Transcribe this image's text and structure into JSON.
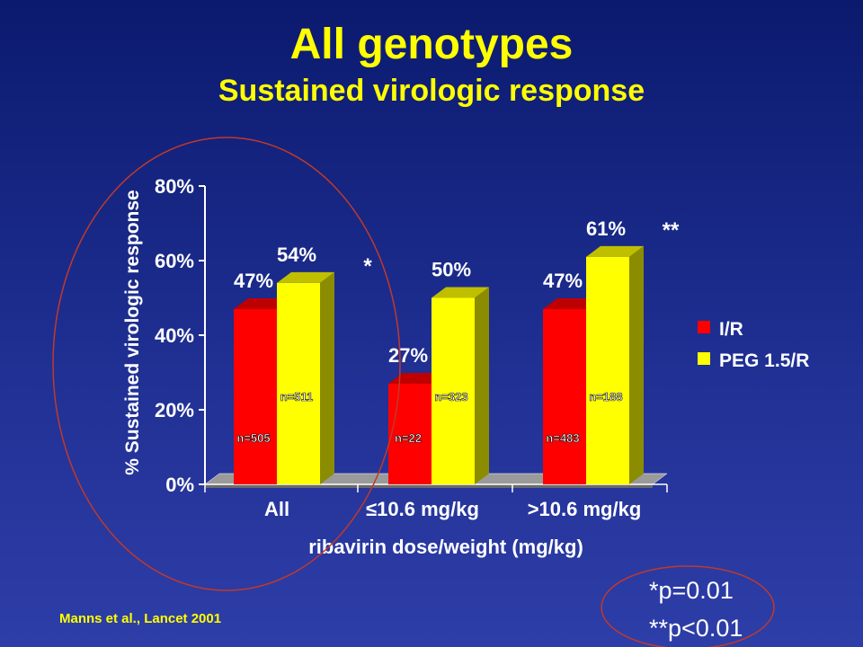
{
  "slide": {
    "title": "All genotypes",
    "subtitle": "Sustained virologic response",
    "source": "Manns et al., Lancet 2001",
    "footnotes": [
      "*p=0.01",
      "**p<0.01"
    ]
  },
  "colors": {
    "background": "#1f2f92",
    "title": "#ffff00",
    "series_ir": "#ff0000",
    "series_peg": "#ffff00",
    "annotation_circles": "#c0392b"
  },
  "chart_data": {
    "type": "bar",
    "categories": [
      "All",
      "≤10.6 mg/kg",
      ">10.6 mg/kg"
    ],
    "series": [
      {
        "name": "I/R",
        "values": [
          47,
          27,
          47
        ],
        "value_labels": [
          "47%",
          "27%",
          "47%"
        ],
        "n_labels": [
          "n=505",
          "n=22",
          "n=483"
        ]
      },
      {
        "name": "PEG 1.5/R",
        "values": [
          54,
          50,
          61
        ],
        "value_labels": [
          "54%",
          "50%",
          "61%"
        ],
        "n_labels": [
          "n=511",
          "n=323",
          "n=188"
        ]
      }
    ],
    "significance": [
      "*",
      "",
      "**"
    ],
    "ylim": [
      0,
      80
    ],
    "yticks": [
      0,
      20,
      40,
      60,
      80
    ],
    "ytick_labels": [
      "0%",
      "20%",
      "40%",
      "60%",
      "80%"
    ],
    "ylabel": "% Sustained virologic response",
    "xlabel": "ribavirin dose/weight (mg/kg)",
    "legend_position": "right",
    "grid": false,
    "style": "3d"
  }
}
